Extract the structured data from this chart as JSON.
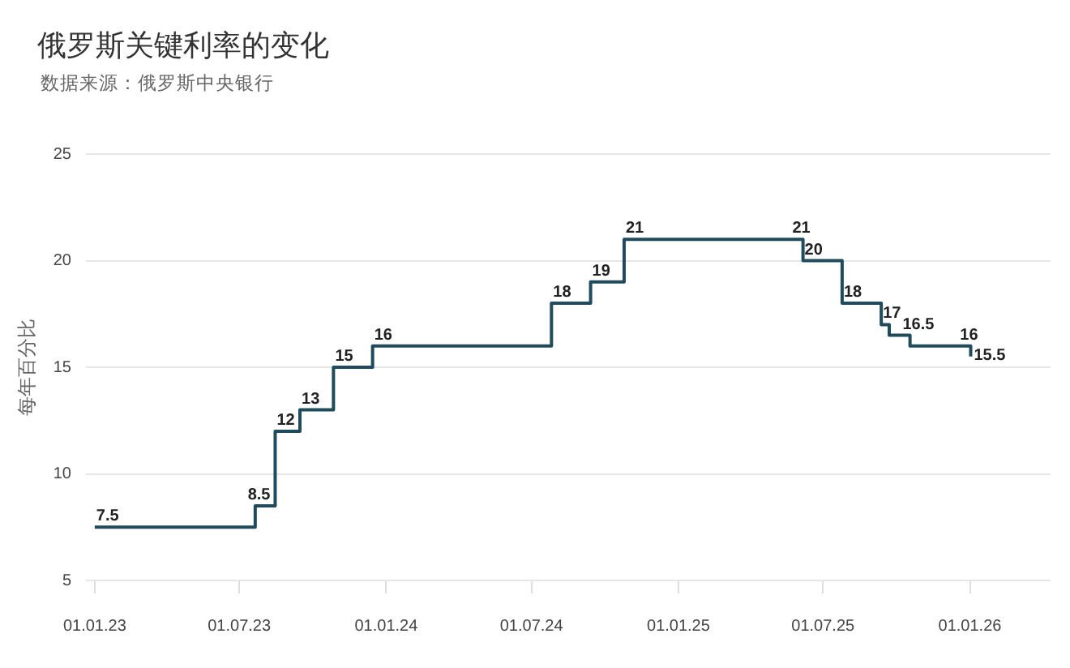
{
  "chart_data": {
    "type": "step",
    "title": "俄罗斯关键利率的变化",
    "subtitle": "数据来源：俄罗斯中央银行",
    "ylabel": "每年百分比",
    "x": [
      "2023-01-01",
      "2023-07-21",
      "2023-08-15",
      "2023-09-15",
      "2023-10-27",
      "2023-12-15",
      "2024-07-26",
      "2024-09-13",
      "2024-10-25",
      "2025-06-05",
      "2025-06-06",
      "2025-07-25",
      "2025-09-12",
      "2025-09-22",
      "2025-10-18",
      "2026-01-01",
      "2026-01-02"
    ],
    "values": [
      7.5,
      8.5,
      12,
      13,
      15,
      16,
      18,
      19,
      21,
      21,
      20,
      18,
      17,
      16.5,
      16,
      16,
      15.5
    ],
    "value_labels": [
      "7.5",
      "8.5",
      "12",
      "13",
      "15",
      "16",
      "18",
      "19",
      "21",
      "21",
      "20",
      "18",
      "17",
      "16.5",
      null,
      "16",
      "15.5"
    ],
    "color": "#1f4b5c",
    "xlim": [
      "2022-12-21",
      "2026-04-12"
    ],
    "xticks": [
      {
        "value": "2023-01-01",
        "label": "01.01.23"
      },
      {
        "value": "2023-07-01",
        "label": "01.07.23"
      },
      {
        "value": "2024-01-01",
        "label": "01.01.24"
      },
      {
        "value": "2024-07-01",
        "label": "01.07.24"
      },
      {
        "value": "2025-01-01",
        "label": "01.01.25"
      },
      {
        "value": "2025-07-01",
        "label": "01.07.25"
      },
      {
        "value": "2026-01-01",
        "label": "01.01.26"
      }
    ],
    "ylim": [
      5,
      25
    ],
    "yticks": [
      5,
      10,
      15,
      20,
      25
    ],
    "grid": "y"
  }
}
